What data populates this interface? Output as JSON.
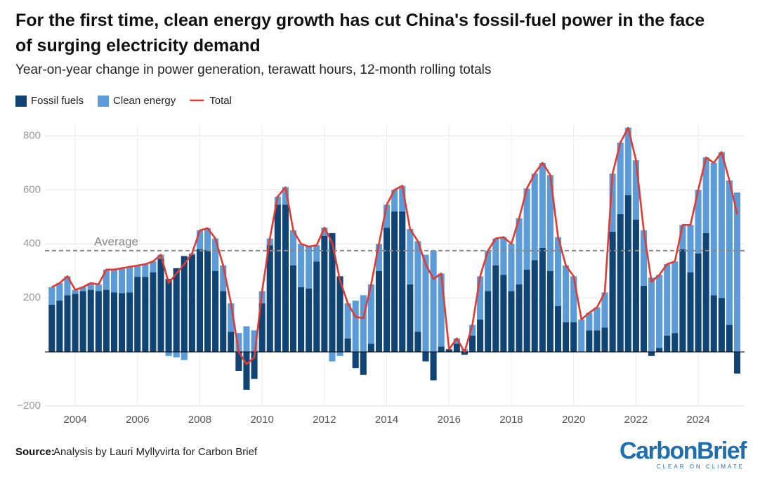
{
  "chart_data": {
    "type": "stacked_bar_line",
    "title": "For the first time, clean energy growth has cut China's fossil-fuel power in the face of surging electricity demand",
    "subtitle": "Year-on-year change in power generation, terawatt hours, 12-month rolling totals",
    "source_label": "Source:",
    "source_text": "Analysis by Lauri Myllyvirta for Carbon Brief",
    "logo": "CarbonBrief",
    "logo_tagline": "CLEAR ON CLIMATE",
    "average": {
      "label": "Average",
      "value": 375
    },
    "xlim": [
      2003,
      2025.5
    ],
    "xticks": [
      2004,
      2006,
      2008,
      2010,
      2012,
      2014,
      2016,
      2018,
      2020,
      2022,
      2024
    ],
    "ylim": [
      -200,
      840
    ],
    "yticks": [
      {
        "value": -200,
        "label": "−200"
      },
      200,
      400,
      600,
      800
    ],
    "grid": true,
    "x": [
      2003.25,
      2003.5,
      2003.75,
      2004,
      2004.25,
      2004.5,
      2004.75,
      2005,
      2005.25,
      2005.5,
      2005.75,
      2006,
      2006.25,
      2006.5,
      2006.75,
      2007,
      2007.25,
      2007.5,
      2007.75,
      2008,
      2008.25,
      2008.5,
      2008.75,
      2009,
      2009.25,
      2009.5,
      2009.75,
      2010,
      2010.25,
      2010.5,
      2010.75,
      2011,
      2011.25,
      2011.5,
      2011.75,
      2012,
      2012.25,
      2012.5,
      2012.75,
      2013,
      2013.25,
      2013.5,
      2013.75,
      2014,
      2014.25,
      2014.5,
      2014.75,
      2015,
      2015.25,
      2015.5,
      2015.75,
      2016,
      2016.25,
      2016.5,
      2016.75,
      2017,
      2017.25,
      2017.5,
      2017.75,
      2018,
      2018.25,
      2018.5,
      2018.75,
      2019,
      2019.25,
      2019.5,
      2019.75,
      2020,
      2020.25,
      2020.5,
      2020.75,
      2021,
      2021.25,
      2021.5,
      2021.75,
      2022,
      2022.25,
      2022.5,
      2022.75,
      2023,
      2023.25,
      2023.5,
      2023.75,
      2024,
      2024.25,
      2024.5,
      2024.75,
      2025,
      2025.25
    ],
    "series": [
      {
        "name": "Fossil fuels",
        "color": "#0f4474",
        "kind": "bar",
        "values": [
          175,
          190,
          210,
          215,
          225,
          230,
          225,
          230,
          220,
          218,
          220,
          278,
          278,
          295,
          345,
          270,
          310,
          355,
          360,
          380,
          378,
          300,
          225,
          75,
          -70,
          -140,
          -100,
          180,
          395,
          545,
          545,
          320,
          240,
          235,
          335,
          430,
          440,
          280,
          50,
          -60,
          -85,
          30,
          300,
          460,
          520,
          520,
          250,
          75,
          -35,
          -105,
          20,
          10,
          30,
          -10,
          60,
          120,
          225,
          320,
          285,
          225,
          250,
          305,
          340,
          385,
          300,
          170,
          110,
          110,
          0,
          80,
          80,
          90,
          445,
          510,
          580,
          490,
          245,
          -15,
          15,
          60,
          70,
          380,
          295,
          365,
          440,
          210,
          200,
          100,
          -80
        ]
      },
      {
        "name": "Clean energy",
        "color": "#5b9bd8",
        "kind": "bar",
        "values": [
          65,
          65,
          70,
          15,
          15,
          25,
          25,
          75,
          85,
          92,
          95,
          42,
          47,
          40,
          15,
          -15,
          -20,
          -30,
          5,
          70,
          80,
          120,
          95,
          105,
          70,
          95,
          80,
          45,
          25,
          30,
          65,
          130,
          160,
          155,
          60,
          30,
          -35,
          -15,
          130,
          190,
          210,
          220,
          100,
          85,
          80,
          95,
          205,
          335,
          360,
          375,
          270,
          0,
          20,
          10,
          40,
          160,
          150,
          100,
          140,
          175,
          245,
          300,
          320,
          315,
          355,
          255,
          210,
          170,
          120,
          65,
          85,
          130,
          215,
          265,
          250,
          220,
          205,
          275,
          270,
          265,
          265,
          90,
          175,
          235,
          280,
          490,
          540,
          535,
          590
        ]
      },
      {
        "name": "Total",
        "color": "#e03a33",
        "kind": "line",
        "values": [
          240,
          255,
          280,
          230,
          240,
          255,
          250,
          305,
          305,
          310,
          315,
          320,
          325,
          335,
          360,
          255,
          290,
          325,
          365,
          450,
          458,
          420,
          320,
          180,
          0,
          -45,
          -20,
          225,
          420,
          575,
          610,
          450,
          400,
          390,
          395,
          460,
          405,
          265,
          180,
          130,
          125,
          250,
          400,
          545,
          600,
          615,
          455,
          410,
          325,
          270,
          290,
          10,
          50,
          0,
          100,
          280,
          375,
          420,
          425,
          400,
          495,
          605,
          660,
          700,
          655,
          425,
          320,
          280,
          120,
          145,
          165,
          220,
          660,
          775,
          830,
          710,
          450,
          260,
          285,
          325,
          335,
          470,
          470,
          600,
          720,
          700,
          740,
          635,
          510
        ]
      }
    ]
  }
}
